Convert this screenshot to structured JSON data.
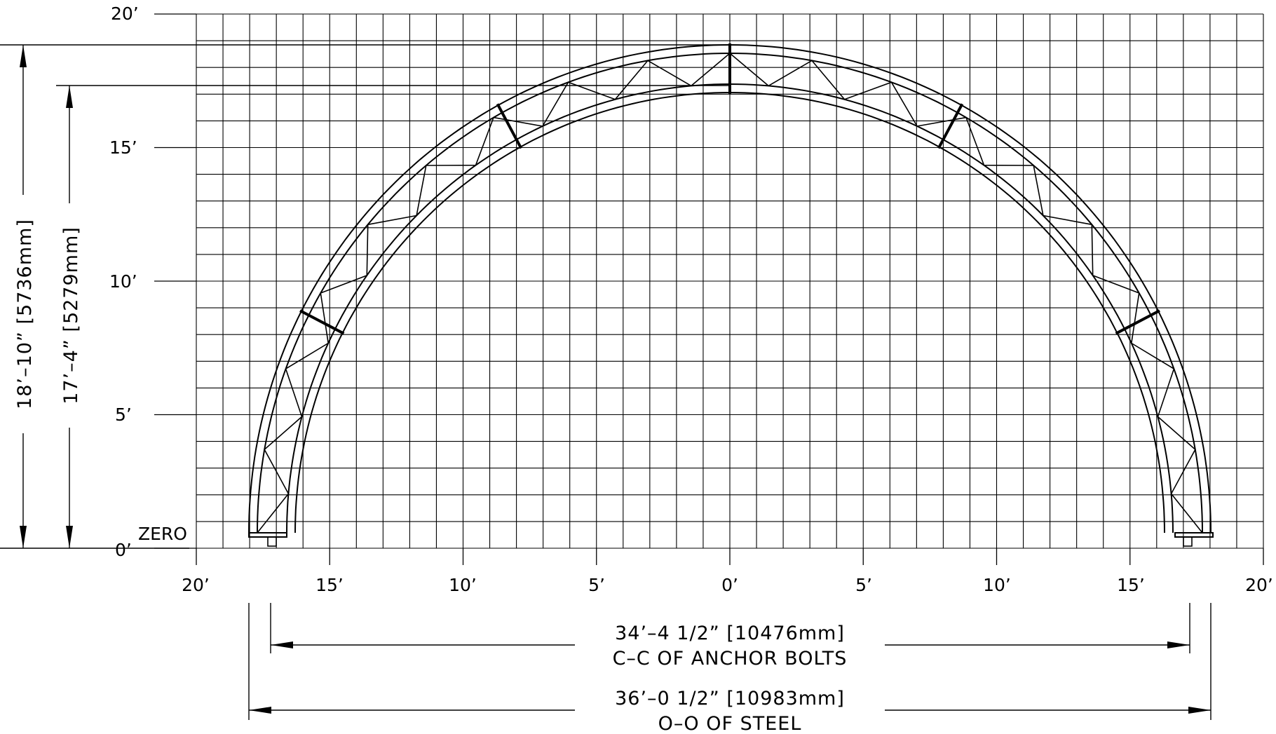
{
  "y_axis": {
    "ticks": [
      {
        "value": 20,
        "label": "20’"
      },
      {
        "value": 15,
        "label": "15’"
      },
      {
        "value": 10,
        "label": "10’"
      },
      {
        "value": 5,
        "label": "5’"
      },
      {
        "value": 0,
        "label": "0’"
      }
    ],
    "zero_label": "ZERO"
  },
  "x_axis": {
    "ticks": [
      {
        "value": -20,
        "label": "20’"
      },
      {
        "value": -15,
        "label": "15’"
      },
      {
        "value": -10,
        "label": "10’"
      },
      {
        "value": -5,
        "label": "5’"
      },
      {
        "value": 0,
        "label": "0’"
      },
      {
        "value": 5,
        "label": "5’"
      },
      {
        "value": 10,
        "label": "10’"
      },
      {
        "value": 15,
        "label": "15’"
      },
      {
        "value": 20,
        "label": "20’"
      }
    ]
  },
  "dimensions": {
    "outer_height": "18’–10”  [5736mm]",
    "inner_height": "17’–4”  [5279mm]",
    "anchor_width": "34’–4  1/2”  [10476mm]",
    "anchor_caption": "C–C  OF  ANCHOR  BOLTS",
    "overall_width": "36’–0  1/2”  [10983mm]",
    "overall_caption": "O–O  OF  STEEL"
  }
}
